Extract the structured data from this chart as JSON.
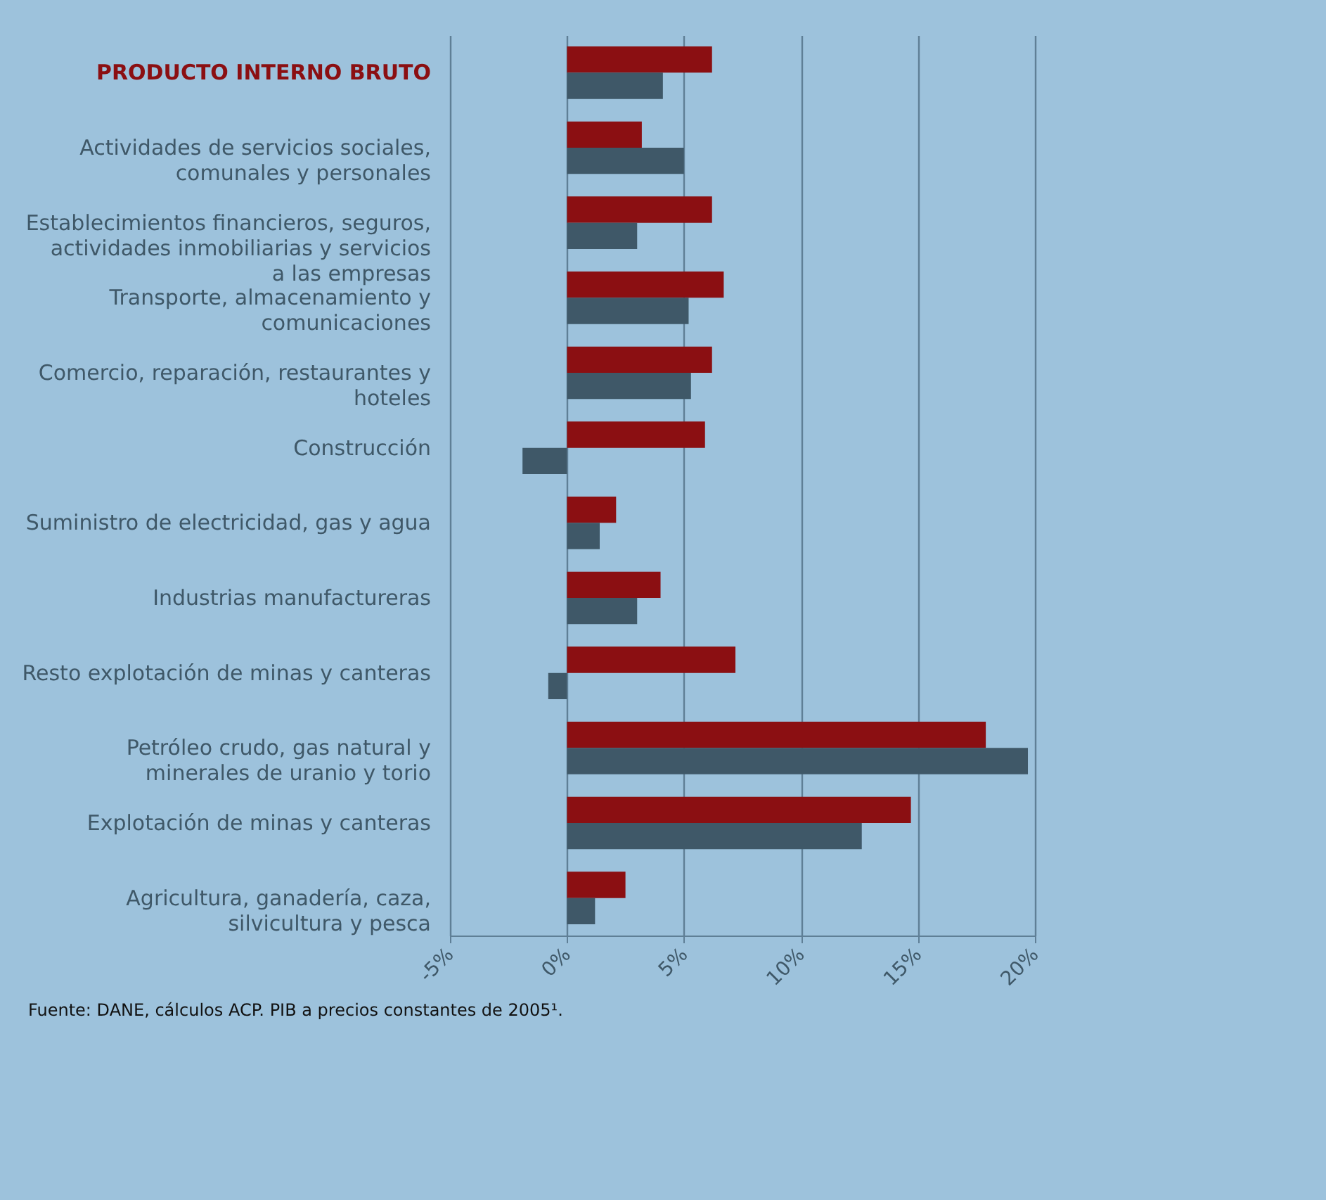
{
  "chart_data": {
    "type": "bar",
    "orientation": "horizontal",
    "categories": [
      "PRODUCTO INTERNO BRUTO",
      "Actividades de servicios sociales, comunales y personales",
      "Establecimientos financieros, seguros, actividades inmobiliarias y servicios a las empresas",
      "Transporte, almacenamiento y comunicaciones",
      "Comercio, reparación, restaurantes y hoteles",
      "Construcción",
      "Suministro de electricidad, gas y agua",
      "Industrias manufactureras",
      "Resto explotación de minas y canteras",
      "Petróleo crudo, gas natural y minerales de uranio y torio",
      "Explotación de minas y canteras",
      "Agricultura, ganadería, caza, silvicultura y pesca"
    ],
    "series": [
      {
        "color": "#8b0f12",
        "values": [
          6.2,
          3.2,
          6.2,
          6.7,
          6.2,
          5.9,
          2.1,
          4.0,
          7.2,
          17.9,
          14.7,
          2.5
        ]
      },
      {
        "color": "#3f5868",
        "values": [
          4.1,
          5.0,
          3.0,
          5.2,
          5.3,
          -1.9,
          1.4,
          3.0,
          -0.8,
          19.7,
          12.6,
          1.2
        ]
      }
    ],
    "xlim": [
      -5,
      20
    ],
    "xticks": [
      {
        "value": -5,
        "label": "-5%"
      },
      {
        "value": 0,
        "label": "0%"
      },
      {
        "value": 5,
        "label": "5%"
      },
      {
        "value": 10,
        "label": "10%"
      },
      {
        "value": 15,
        "label": "15%"
      },
      {
        "value": 20,
        "label": "20%"
      }
    ],
    "grid": "x",
    "annotations": [
      "Fuente: DANE, cálculos ACP. PIB a precios constantes de 2005¹."
    ]
  }
}
